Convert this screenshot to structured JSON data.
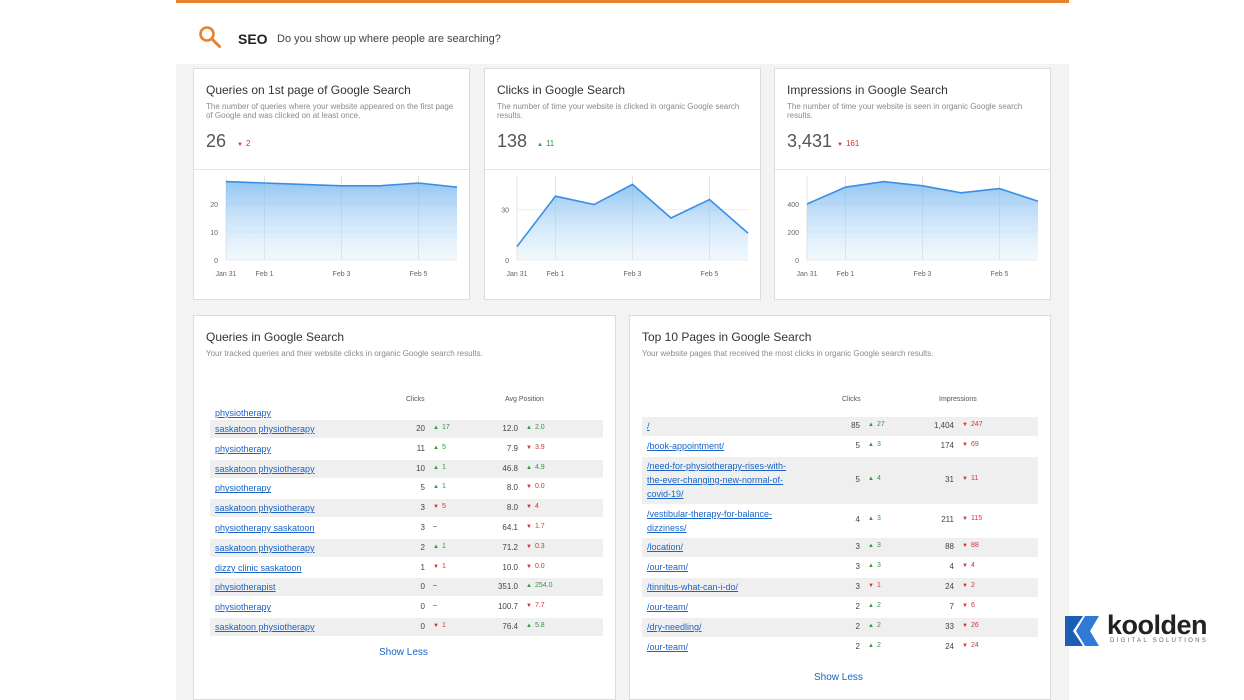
{
  "header": {
    "title": "SEO",
    "subtitle": "Do you show up where people are searching?",
    "accent": "#e8812d"
  },
  "metrics": [
    {
      "title": "Queries on 1st page of Google Search",
      "description": "The number of queries where your website appeared on the first page of Google and was clicked on at least once.",
      "value": "26",
      "delta": "2",
      "trend": "down",
      "chart_data": {
        "type": "area",
        "x": [
          "Jan 31",
          "Feb 1",
          "Feb 2",
          "Feb 3",
          "Feb 4",
          "Feb 5",
          "Feb 6"
        ],
        "xticks": [
          "Jan 31",
          "Feb 1",
          "Feb 3",
          "Feb 5"
        ],
        "values": [
          28,
          27.5,
          27,
          26.5,
          26.5,
          27.5,
          26
        ],
        "yticks": [
          "0",
          "10",
          "20"
        ],
        "ylim": [
          0,
          30
        ]
      }
    },
    {
      "title": "Clicks in Google Search",
      "description": "The number of time your website is clicked in organic Google search results.",
      "value": "138",
      "delta": "11",
      "trend": "up",
      "chart_data": {
        "type": "area",
        "x": [
          "Jan 31",
          "Feb 1",
          "Feb 2",
          "Feb 3",
          "Feb 4",
          "Feb 5",
          "Feb 6"
        ],
        "xticks": [
          "Jan 31",
          "Feb 1",
          "Feb 3",
          "Feb 5"
        ],
        "values": [
          8,
          38,
          33,
          45,
          25,
          36,
          16
        ],
        "yticks": [
          "0",
          "30"
        ],
        "ylim": [
          0,
          50
        ]
      }
    },
    {
      "title": "Impressions in Google Search",
      "description": "The number of time your website is seen in organic Google search results.",
      "value": "3,431",
      "delta": "161",
      "trend": "down",
      "chart_data": {
        "type": "area",
        "x": [
          "Jan 31",
          "Feb 1",
          "Feb 2",
          "Feb 3",
          "Feb 4",
          "Feb 5",
          "Feb 6"
        ],
        "xticks": [
          "Jan 31",
          "Feb 1",
          "Feb 3",
          "Feb 5"
        ],
        "values": [
          400,
          520,
          560,
          530,
          480,
          510,
          420
        ],
        "yticks": [
          "0",
          "200",
          "400"
        ],
        "ylim": [
          0,
          600
        ]
      }
    }
  ],
  "queries": {
    "title": "Queries in Google Search",
    "description": "Your tracked queries and their website clicks in organic Google search results.",
    "col_clicks": "Clicks",
    "col_position": "Avg Position",
    "show_less": "Show Less",
    "rows": [
      {
        "q": "physiotherapy",
        "clicks": "",
        "cd": "",
        "ct": "",
        "pos": "",
        "pd": "",
        "pt": ""
      },
      {
        "q": "saskatoon physiotherapy",
        "clicks": "20",
        "cd": "17",
        "ct": "up",
        "pos": "12.0",
        "pd": "2.0",
        "pt": "up"
      },
      {
        "q": "physiotherapy",
        "clicks": "11",
        "cd": "5",
        "ct": "up",
        "pos": "7.9",
        "pd": "3.9",
        "pt": "down"
      },
      {
        "q": "saskatoon physiotherapy",
        "clicks": "10",
        "cd": "1",
        "ct": "up",
        "pos": "46.8",
        "pd": "4.9",
        "pt": "up"
      },
      {
        "q": "physiotherapy",
        "clicks": "5",
        "cd": "1",
        "ct": "up",
        "pos": "8.0",
        "pd": "0.0",
        "pt": "down"
      },
      {
        "q": "saskatoon physiotherapy",
        "clicks": "3",
        "cd": "5",
        "ct": "down",
        "pos": "8.0",
        "pd": "4",
        "pt": "down"
      },
      {
        "q": "physiotherapy saskatoon",
        "clicks": "3",
        "cd": "–",
        "ct": "none",
        "pos": "64.1",
        "pd": "1.7",
        "pt": "down"
      },
      {
        "q": "saskatoon physiotherapy",
        "clicks": "2",
        "cd": "1",
        "ct": "up",
        "pos": "71.2",
        "pd": "0.3",
        "pt": "down"
      },
      {
        "q": "dizzy clinic saskatoon",
        "clicks": "1",
        "cd": "1",
        "ct": "down",
        "pos": "10.0",
        "pd": "0.0",
        "pt": "down"
      },
      {
        "q": "physiotherapist",
        "clicks": "0",
        "cd": "–",
        "ct": "none",
        "pos": "351.0",
        "pd": "254.0",
        "pt": "up"
      },
      {
        "q": "physiotherapy",
        "clicks": "0",
        "cd": "–",
        "ct": "none",
        "pos": "100.7",
        "pd": "7.7",
        "pt": "down"
      },
      {
        "q": "saskatoon physiotherapy",
        "clicks": "0",
        "cd": "1",
        "ct": "down",
        "pos": "76.4",
        "pd": "5.8",
        "pt": "up"
      }
    ]
  },
  "pages": {
    "title": "Top 10 Pages in Google Search",
    "description": "Your website pages that received the most clicks in organic Google search results.",
    "col_clicks": "Clicks",
    "col_impressions": "Impressions",
    "show_less": "Show Less",
    "rows": [
      {
        "p": [
          "/"
        ],
        "clicks": "85",
        "cd": "27",
        "ct": "up",
        "imp": "1,404",
        "id": "247",
        "it": "down"
      },
      {
        "p": [
          "/book-appointment/"
        ],
        "clicks": "5",
        "cd": "3",
        "ct": "up",
        "imp": "174",
        "id": "69",
        "it": "down"
      },
      {
        "p": [
          "/need-for-physiotherapy-rises-with-",
          "the-ever-changing-new-normal-of-",
          "covid-19/"
        ],
        "clicks": "5",
        "cd": "4",
        "ct": "up",
        "imp": "31",
        "id": "11",
        "it": "down"
      },
      {
        "p": [
          "/vestibular-therapy-for-balance-",
          "dizziness/"
        ],
        "clicks": "4",
        "cd": "3",
        "ct": "up",
        "imp": "211",
        "id": "115",
        "it": "down"
      },
      {
        "p": [
          "/location/"
        ],
        "clicks": "3",
        "cd": "3",
        "ct": "up",
        "imp": "88",
        "id": "88",
        "it": "down"
      },
      {
        "p": [
          "/our-team/"
        ],
        "clicks": "3",
        "cd": "3",
        "ct": "up",
        "imp": "4",
        "id": "4",
        "it": "down"
      },
      {
        "p": [
          "/tinnitus-what-can-i-do/"
        ],
        "clicks": "3",
        "cd": "1",
        "ct": "down",
        "imp": "24",
        "id": "2",
        "it": "down"
      },
      {
        "p": [
          "/our-team/"
        ],
        "clicks": "2",
        "cd": "2",
        "ct": "up",
        "imp": "7",
        "id": "6",
        "it": "down"
      },
      {
        "p": [
          "/dry-needling/"
        ],
        "clicks": "2",
        "cd": "2",
        "ct": "up",
        "imp": "33",
        "id": "26",
        "it": "down"
      },
      {
        "p": [
          "/our-team/"
        ],
        "clicks": "2",
        "cd": "2",
        "ct": "up",
        "imp": "24",
        "id": "24",
        "it": "down"
      }
    ]
  },
  "brand": {
    "name": "koolden",
    "tagline": "DIGITAL SOLUTIONS",
    "color": "#1b5fb5"
  }
}
